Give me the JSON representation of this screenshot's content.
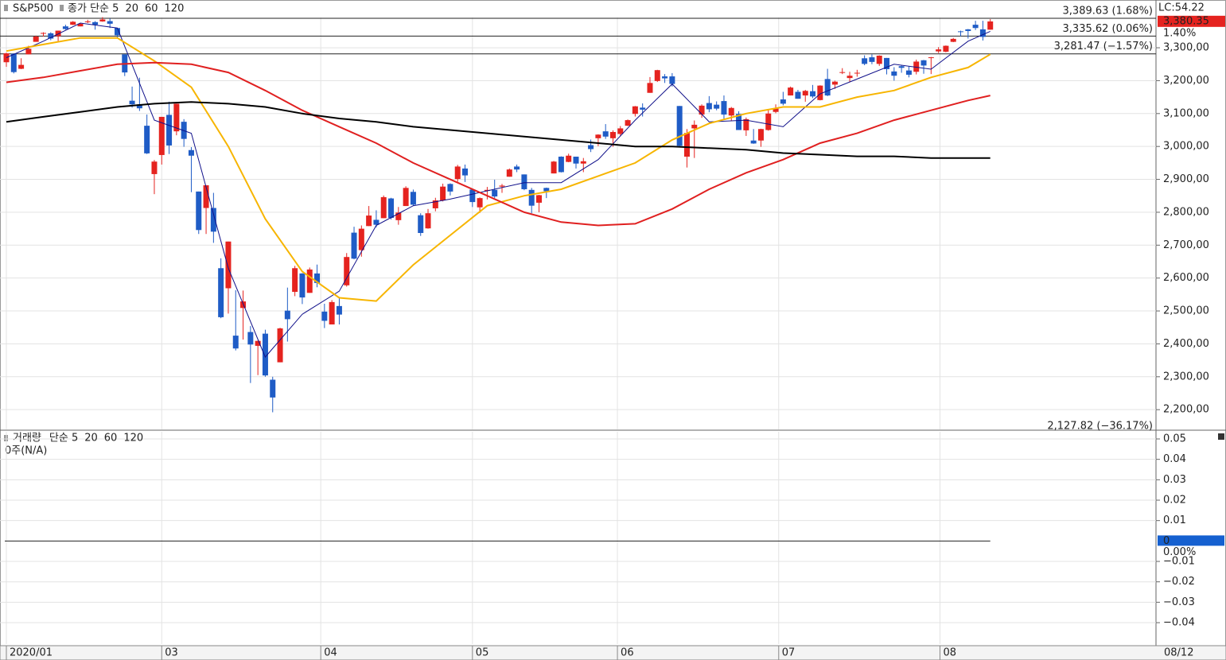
{
  "chart_data": [
    {
      "type": "candlestick",
      "title": "S&P500",
      "open": [
        3256,
        3282,
        3236,
        3280,
        3318,
        3344,
        3344,
        3335,
        3365,
        3370,
        3365,
        3380,
        3378,
        3380,
        3381,
        3360,
        3280,
        3139,
        3128,
        3063,
        2916,
        2974,
        3096,
        3046,
        3075,
        2989,
        2863,
        2813,
        2813,
        2630,
        2569,
        2425,
        2509,
        2436,
        2394,
        2431,
        2291,
        2344,
        2501,
        2558,
        2614,
        2555,
        2614,
        2498,
        2459,
        2515,
        2578,
        2738,
        2685,
        2758,
        2777,
        2782,
        2842,
        2776,
        2819,
        2862,
        2791,
        2751,
        2812,
        2836,
        2886,
        2901,
        2933,
        2869,
        2815,
        2865,
        2868,
        2878,
        2908,
        2939,
        2915,
        2868,
        2829,
        2874,
        2918,
        2969,
        2953,
        2969,
        2948,
        3004,
        3025,
        3046,
        3025,
        3038,
        3063,
        3099,
        3118,
        3163,
        3199,
        3213,
        3213,
        3123,
        2969,
        3055,
        3097,
        3132,
        3127,
        3138,
        3094,
        3099,
        3049,
        3018,
        3018,
        3050,
        3105,
        3143,
        3155,
        3166,
        3155,
        3168,
        3141,
        3205,
        3188,
        3225,
        3208,
        3224,
        3268,
        3271,
        3251,
        3269,
        3228,
        3244,
        3231,
        3227,
        3262,
        3270,
        3289,
        3288,
        3318,
        3350,
        3356,
        3370,
        3356,
        3355
      ],
      "high": [
        3285,
        3283,
        3268,
        3306,
        3337,
        3347,
        3347,
        3352,
        3370,
        3381,
        3375,
        3385,
        3381,
        3393,
        3389,
        3360,
        3280,
        3182,
        3209,
        3097,
        2959,
        3090,
        3136,
        3130,
        3083,
        2998,
        2863,
        2882,
        2859,
        2660,
        2711,
        2563,
        2562,
        2454,
        2410,
        2443,
        2300,
        2449,
        2571,
        2637,
        2615,
        2632,
        2641,
        2522,
        2533,
        2538,
        2676,
        2756,
        2760,
        2819,
        2806,
        2851,
        2844,
        2816,
        2879,
        2869,
        2797,
        2810,
        2844,
        2887,
        2888,
        2944,
        2945,
        2870,
        2845,
        2877,
        2899,
        2886,
        2933,
        2945,
        2915,
        2874,
        2853,
        2875,
        2956,
        2970,
        2978,
        2969,
        2965,
        3021,
        3037,
        3068,
        3049,
        3062,
        3082,
        3123,
        3131,
        3211,
        3233,
        3220,
        3223,
        3123,
        3053,
        3079,
        3128,
        3153,
        3137,
        3155,
        3120,
        3107,
        3088,
        3053,
        3054,
        3112,
        3128,
        3166,
        3182,
        3172,
        3172,
        3187,
        3186,
        3236,
        3200,
        3238,
        3227,
        3233,
        3277,
        3280,
        3277,
        3269,
        3241,
        3246,
        3243,
        3264,
        3263,
        3272,
        3302,
        3307,
        3330,
        3352,
        3357,
        3382,
        3382,
        3387
      ],
      "low": [
        3242,
        3222,
        3235,
        3280,
        3318,
        3334,
        3323,
        3317,
        3355,
        3369,
        3365,
        3375,
        3355,
        3379,
        3360,
        3328,
        3214,
        3118,
        3108,
        2977,
        2855,
        2945,
        2977,
        3034,
        2999,
        2861,
        2734,
        2734,
        2707,
        2478,
        2492,
        2380,
        2413,
        2281,
        2305,
        2300,
        2192,
        2344,
        2407,
        2545,
        2521,
        2555,
        2572,
        2448,
        2459,
        2459,
        2574,
        2657,
        2665,
        2758,
        2754,
        2782,
        2778,
        2762,
        2819,
        2820,
        2728,
        2750,
        2803,
        2833,
        2851,
        2893,
        2892,
        2816,
        2798,
        2839,
        2843,
        2859,
        2908,
        2922,
        2867,
        2797,
        2800,
        2843,
        2918,
        2921,
        2952,
        2933,
        2922,
        2983,
        3001,
        3023,
        2999,
        3031,
        3062,
        3091,
        3091,
        3163,
        3196,
        3193,
        3182,
        2999,
        2936,
        2965,
        3087,
        3104,
        3110,
        3083,
        3079,
        3050,
        3032,
        3008,
        2999,
        3048,
        3101,
        3125,
        3155,
        3145,
        3136,
        3147,
        3140,
        3153,
        3175,
        3220,
        3196,
        3212,
        3247,
        3250,
        3245,
        3219,
        3200,
        3224,
        3210,
        3219,
        3221,
        3220,
        3284,
        3286,
        3317,
        3335,
        3328,
        3354,
        3322,
        3355
      ],
      "close": [
        3283,
        3226,
        3248,
        3297,
        3334,
        3345,
        3328,
        3352,
        3357,
        3379,
        3373,
        3380,
        3370,
        3386,
        3373,
        3338,
        3225,
        3128,
        3116,
        2979,
        2954,
        3090,
        3003,
        3130,
        3023,
        2972,
        2746,
        2882,
        2741,
        2481,
        2711,
        2386,
        2529,
        2398,
        2409,
        2304,
        2237,
        2447,
        2475,
        2630,
        2541,
        2626,
        2585,
        2470,
        2527,
        2489,
        2664,
        2659,
        2750,
        2790,
        2762,
        2846,
        2783,
        2799,
        2874,
        2823,
        2737,
        2797,
        2836,
        2878,
        2863,
        2939,
        2912,
        2831,
        2843,
        2868,
        2848,
        2881,
        2930,
        2930,
        2870,
        2820,
        2852,
        2864,
        2954,
        2922,
        2972,
        2948,
        2955,
        2992,
        3036,
        3030,
        3044,
        3055,
        3080,
        3122,
        3112,
        3193,
        3232,
        3207,
        3190,
        3002,
        3041,
        3066,
        3124,
        3113,
        3115,
        3097,
        3117,
        3050,
        3083,
        3009,
        3053,
        3100,
        3115,
        3130,
        3179,
        3145,
        3169,
        3152,
        3185,
        3155,
        3197,
        3226,
        3215,
        3224,
        3251,
        3257,
        3276,
        3235,
        3215,
        3239,
        3218,
        3258,
        3246,
        3271,
        3295,
        3306,
        3327,
        3349,
        3351,
        3360,
        3333,
        3380
      ],
      "up_color": "#e5231f",
      "down_color": "#1f5cc6",
      "ma_x": [
        0,
        5,
        10,
        15,
        20,
        25,
        30,
        35,
        40,
        45,
        50,
        55,
        60,
        65,
        70,
        75,
        80,
        85,
        90,
        95,
        100,
        105,
        110,
        115,
        120,
        125,
        130,
        133
      ],
      "series": [
        {
          "name": "종가 단순 5",
          "color": "#10108a",
          "width": 1,
          "values": [
            3270,
            3320,
            3375,
            3360,
            3080,
            3040,
            2630,
            2360,
            2490,
            2560,
            2760,
            2820,
            2840,
            2865,
            2890,
            2890,
            2960,
            3080,
            3190,
            3075,
            3080,
            3060,
            3160,
            3205,
            3250,
            3235,
            3320,
            3350
          ]
        },
        {
          "name": "20",
          "color": "#f7b500",
          "width": 2,
          "values": [
            3290,
            3310,
            3330,
            3330,
            3260,
            3180,
            3000,
            2780,
            2620,
            2540,
            2530,
            2640,
            2730,
            2820,
            2850,
            2870,
            2910,
            2950,
            3020,
            3070,
            3100,
            3120,
            3120,
            3150,
            3170,
            3210,
            3240,
            3280
          ]
        },
        {
          "name": "60",
          "color": "#e02020",
          "width": 2,
          "values": [
            3195,
            3210,
            3230,
            3250,
            3255,
            3250,
            3225,
            3170,
            3110,
            3060,
            3010,
            2950,
            2900,
            2850,
            2800,
            2770,
            2760,
            2765,
            2810,
            2870,
            2920,
            2960,
            3010,
            3040,
            3080,
            3110,
            3140,
            3155
          ]
        },
        {
          "name": "120",
          "color": "#000000",
          "width": 2,
          "values": [
            3075,
            3090,
            3105,
            3120,
            3130,
            3135,
            3130,
            3120,
            3100,
            3085,
            3075,
            3060,
            3050,
            3040,
            3030,
            3020,
            3010,
            3000,
            3000,
            2995,
            2990,
            2980,
            2975,
            2970,
            2970,
            2965,
            2965,
            2965
          ]
        }
      ],
      "xlim": [
        -0.86,
        155.4
      ],
      "xticks": [
        {
          "value": 0,
          "label": "2020/01"
        },
        {
          "value": 21,
          "label": "03"
        },
        {
          "value": 42.5,
          "label": "04"
        },
        {
          "value": 63,
          "label": "05"
        },
        {
          "value": 82.6,
          "label": "06"
        },
        {
          "value": 104.4,
          "label": "07"
        },
        {
          "value": 126.2,
          "label": "08"
        }
      ],
      "end_date_label": "08/12",
      "ylim": [
        2140,
        3392
      ],
      "yticks": [
        {
          "value": 3300,
          "label": "3,300,00"
        },
        {
          "value": 3200,
          "label": "3,200,00"
        },
        {
          "value": 3100,
          "label": "3,100,00"
        },
        {
          "value": 3000,
          "label": "3,000,00"
        },
        {
          "value": 2900,
          "label": "2,900,00"
        },
        {
          "value": 2800,
          "label": "2,800,00"
        },
        {
          "value": 2700,
          "label": "2,700,00"
        },
        {
          "value": 2600,
          "label": "2,600,00"
        },
        {
          "value": 2500,
          "label": "2,500,00"
        },
        {
          "value": 2400,
          "label": "2,400,00"
        },
        {
          "value": 2300,
          "label": "2,300,00"
        },
        {
          "value": 2200,
          "label": "2,200,00"
        }
      ],
      "reference_lines": [
        {
          "value": 3389.63,
          "label": "3,389.63 (1.68%)"
        },
        {
          "value": 3335.62,
          "label": "3,335.62 (0.06%)"
        },
        {
          "value": 3281.47,
          "label": "3,281.47 (−1.57%)"
        },
        {
          "value": 2127.82,
          "label": "2,127.82 (−36.17%)"
        }
      ],
      "last_price": {
        "value": 3380.35,
        "label": "3,380.35"
      },
      "lc_label": "LC:54.22",
      "change_label": "1.40%",
      "highlight_color": "#e5231f",
      "grid": true
    },
    {
      "type": "volume",
      "title": "거래량",
      "title_color": "#2a8a9a",
      "legend": [
        {
          "name": "단순 5",
          "color": "#10108a"
        },
        {
          "name": "20",
          "color": "#e02020"
        },
        {
          "name": "60",
          "color": "#1a9e1a"
        },
        {
          "name": "120",
          "color": "#000000"
        }
      ],
      "note": "0주(N/A)",
      "ylim": [
        -0.0505,
        0.0535
      ],
      "yticks": [
        0.05,
        0.04,
        0.03,
        0.02,
        0.01,
        {
          "value": -0.01,
          "label": "−0.01"
        },
        {
          "value": -0.02,
          "label": "−0.02"
        },
        {
          "value": -0.03,
          "label": "−0.03"
        },
        {
          "value": -0.04,
          "label": "−0.04"
        }
      ],
      "baseline": 0,
      "last_value": 0,
      "change_label": "0.00%",
      "highlight_color": "#1560d0",
      "grid": true
    }
  ]
}
